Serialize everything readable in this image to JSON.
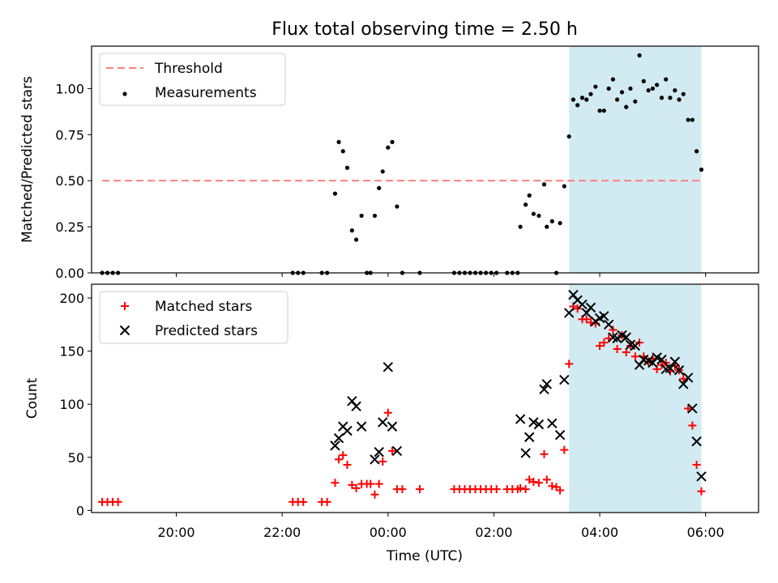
{
  "chart_data": [
    {
      "type": "scatter",
      "title": "Flux total observing time = 2.50 h",
      "xlabel": "",
      "ylabel": "Matched/Predicted stars",
      "x_unit": "hours relative to 00:00 UTC",
      "xlim": [
        -5.6,
        7.0
      ],
      "ylim": [
        0.0,
        1.23
      ],
      "yticks": [
        0.0,
        0.25,
        0.5,
        0.75,
        1.0
      ],
      "ytick_labels": [
        "0.00",
        "0.25",
        "0.50",
        "0.75",
        "1.00"
      ],
      "shaded_region": {
        "x": [
          3.42,
          5.92
        ],
        "color": "#add8e6"
      },
      "legend_location": "upper left",
      "grid": false,
      "series": [
        {
          "name": "Threshold",
          "style": "dashed-line",
          "color": "#ff8080",
          "points": [
            [
              -5.4,
              0.5
            ],
            [
              5.92,
              0.5
            ]
          ]
        },
        {
          "name": "Measurements",
          "style": "dot",
          "color": "#000000",
          "points": [
            [
              -5.4,
              0.0
            ],
            [
              -5.3,
              0.0
            ],
            [
              -5.2,
              0.0
            ],
            [
              -5.1,
              0.0
            ],
            [
              -1.8,
              0.0
            ],
            [
              -1.7,
              0.0
            ],
            [
              -1.6,
              0.0
            ],
            [
              -1.25,
              0.0
            ],
            [
              -1.15,
              0.0
            ],
            [
              -1.0,
              0.43
            ],
            [
              -0.93,
              0.71
            ],
            [
              -0.85,
              0.66
            ],
            [
              -0.77,
              0.57
            ],
            [
              -0.68,
              0.23
            ],
            [
              -0.6,
              0.18
            ],
            [
              -0.5,
              0.31
            ],
            [
              -0.4,
              0.0
            ],
            [
              -0.33,
              0.0
            ],
            [
              -0.25,
              0.31
            ],
            [
              -0.17,
              0.46
            ],
            [
              -0.1,
              0.55
            ],
            [
              0.0,
              0.68
            ],
            [
              0.08,
              0.71
            ],
            [
              0.17,
              0.36
            ],
            [
              0.27,
              0.0
            ],
            [
              0.6,
              0.0
            ],
            [
              1.25,
              0.0
            ],
            [
              1.35,
              0.0
            ],
            [
              1.45,
              0.0
            ],
            [
              1.55,
              0.0
            ],
            [
              1.65,
              0.0
            ],
            [
              1.75,
              0.0
            ],
            [
              1.85,
              0.0
            ],
            [
              1.95,
              0.0
            ],
            [
              2.05,
              0.0
            ],
            [
              2.25,
              0.0
            ],
            [
              2.35,
              0.0
            ],
            [
              2.45,
              0.0
            ],
            [
              2.5,
              0.25
            ],
            [
              2.6,
              0.37
            ],
            [
              2.67,
              0.42
            ],
            [
              2.75,
              0.32
            ],
            [
              2.85,
              0.31
            ],
            [
              2.95,
              0.48
            ],
            [
              3.0,
              0.25
            ],
            [
              3.1,
              0.28
            ],
            [
              3.18,
              0.0
            ],
            [
              3.25,
              0.27
            ],
            [
              3.33,
              0.47
            ],
            [
              3.42,
              0.74
            ],
            [
              3.5,
              0.94
            ],
            [
              3.58,
              0.91
            ],
            [
              3.67,
              0.95
            ],
            [
              3.75,
              0.94
            ],
            [
              3.83,
              0.97
            ],
            [
              3.92,
              1.01
            ],
            [
              4.0,
              0.88
            ],
            [
              4.08,
              0.88
            ],
            [
              4.17,
              1.0
            ],
            [
              4.25,
              1.05
            ],
            [
              4.33,
              0.94
            ],
            [
              4.42,
              0.98
            ],
            [
              4.5,
              0.9
            ],
            [
              4.58,
              1.0
            ],
            [
              4.67,
              0.93
            ],
            [
              4.75,
              1.18
            ],
            [
              4.83,
              1.04
            ],
            [
              4.92,
              0.99
            ],
            [
              5.0,
              1.0
            ],
            [
              5.08,
              1.02
            ],
            [
              5.17,
              0.95
            ],
            [
              5.25,
              1.05
            ],
            [
              5.33,
              0.95
            ],
            [
              5.42,
              0.99
            ],
            [
              5.5,
              0.94
            ],
            [
              5.58,
              0.97
            ],
            [
              5.67,
              0.83
            ],
            [
              5.75,
              0.83
            ],
            [
              5.83,
              0.66
            ],
            [
              5.92,
              0.56
            ]
          ]
        }
      ]
    },
    {
      "type": "scatter",
      "title": "",
      "xlabel": "Time (UTC)",
      "ylabel": "Count",
      "x_unit": "hours relative to 00:00 UTC",
      "xlim": [
        -5.6,
        7.0
      ],
      "ylim": [
        -2,
        213
      ],
      "yticks": [
        0,
        50,
        100,
        150,
        200
      ],
      "ytick_labels": [
        "0",
        "50",
        "100",
        "150",
        "200"
      ],
      "xticks": [
        -4,
        -2,
        0,
        2,
        4,
        6
      ],
      "xtick_labels": [
        "20:00",
        "22:00",
        "00:00",
        "02:00",
        "04:00",
        "06:00"
      ],
      "shaded_region": {
        "x": [
          3.42,
          5.92
        ],
        "color": "#add8e6"
      },
      "legend_location": "upper left",
      "grid": false,
      "series": [
        {
          "name": "Matched stars",
          "marker": "+",
          "color": "#ff0000",
          "points": [
            [
              -5.4,
              8
            ],
            [
              -5.3,
              8
            ],
            [
              -5.2,
              8
            ],
            [
              -5.1,
              8
            ],
            [
              -1.8,
              8
            ],
            [
              -1.7,
              8
            ],
            [
              -1.6,
              8
            ],
            [
              -1.25,
              8
            ],
            [
              -1.15,
              8
            ],
            [
              -1.0,
              26
            ],
            [
              -0.93,
              48
            ],
            [
              -0.85,
              52
            ],
            [
              -0.77,
              43
            ],
            [
              -0.68,
              24
            ],
            [
              -0.6,
              21
            ],
            [
              -0.5,
              25
            ],
            [
              -0.4,
              25
            ],
            [
              -0.33,
              25
            ],
            [
              -0.25,
              15
            ],
            [
              -0.17,
              25
            ],
            [
              -0.1,
              46
            ],
            [
              0.0,
              92
            ],
            [
              0.08,
              56
            ],
            [
              0.17,
              20
            ],
            [
              0.27,
              20
            ],
            [
              0.6,
              20
            ],
            [
              1.25,
              20
            ],
            [
              1.35,
              20
            ],
            [
              1.45,
              20
            ],
            [
              1.55,
              20
            ],
            [
              1.65,
              20
            ],
            [
              1.75,
              20
            ],
            [
              1.85,
              20
            ],
            [
              1.95,
              20
            ],
            [
              2.05,
              20
            ],
            [
              2.25,
              20
            ],
            [
              2.35,
              20
            ],
            [
              2.45,
              20
            ],
            [
              2.5,
              21
            ],
            [
              2.6,
              20
            ],
            [
              2.67,
              29
            ],
            [
              2.75,
              27
            ],
            [
              2.85,
              26
            ],
            [
              2.95,
              53
            ],
            [
              3.0,
              29
            ],
            [
              3.1,
              23
            ],
            [
              3.18,
              22
            ],
            [
              3.25,
              19
            ],
            [
              3.33,
              57
            ],
            [
              3.42,
              138
            ],
            [
              3.5,
              192
            ],
            [
              3.58,
              190
            ],
            [
              3.67,
              180
            ],
            [
              3.75,
              180
            ],
            [
              3.83,
              177
            ],
            [
              3.92,
              176
            ],
            [
              4.0,
              155
            ],
            [
              4.08,
              158
            ],
            [
              4.17,
              162
            ],
            [
              4.25,
              170
            ],
            [
              4.33,
              152
            ],
            [
              4.42,
              165
            ],
            [
              4.5,
              149
            ],
            [
              4.58,
              155
            ],
            [
              4.67,
              145
            ],
            [
              4.75,
              158
            ],
            [
              4.83,
              145
            ],
            [
              4.92,
              140
            ],
            [
              5.0,
              143
            ],
            [
              5.08,
              133
            ],
            [
              5.17,
              137
            ],
            [
              5.25,
              139
            ],
            [
              5.33,
              131
            ],
            [
              5.42,
              136
            ],
            [
              5.5,
              132
            ],
            [
              5.58,
              124
            ],
            [
              5.67,
              96
            ],
            [
              5.75,
              80
            ],
            [
              5.83,
              43
            ],
            [
              5.92,
              18
            ]
          ]
        },
        {
          "name": "Predicted stars",
          "marker": "x",
          "color": "#000000",
          "points": [
            [
              -1.0,
              61
            ],
            [
              -0.93,
              68
            ],
            [
              -0.85,
              79
            ],
            [
              -0.77,
              75
            ],
            [
              -0.68,
              103
            ],
            [
              -0.6,
              98
            ],
            [
              -0.5,
              79
            ],
            [
              -0.25,
              48
            ],
            [
              -0.17,
              55
            ],
            [
              -0.1,
              83
            ],
            [
              0.0,
              135
            ],
            [
              0.08,
              79
            ],
            [
              0.17,
              56
            ],
            [
              2.5,
              86
            ],
            [
              2.6,
              54
            ],
            [
              2.67,
              69
            ],
            [
              2.75,
              83
            ],
            [
              2.85,
              81
            ],
            [
              2.95,
              114
            ],
            [
              3.0,
              119
            ],
            [
              3.1,
              82
            ],
            [
              3.25,
              71
            ],
            [
              3.33,
              123
            ],
            [
              3.42,
              186
            ],
            [
              3.5,
              203
            ],
            [
              3.58,
              198
            ],
            [
              3.67,
              194
            ],
            [
              3.75,
              186
            ],
            [
              3.83,
              191
            ],
            [
              3.92,
              178
            ],
            [
              4.0,
              181
            ],
            [
              4.08,
              183
            ],
            [
              4.17,
              175
            ],
            [
              4.25,
              163
            ],
            [
              4.33,
              162
            ],
            [
              4.42,
              165
            ],
            [
              4.5,
              163
            ],
            [
              4.58,
              156
            ],
            [
              4.67,
              155
            ],
            [
              4.75,
              137
            ],
            [
              4.83,
              142
            ],
            [
              4.92,
              141
            ],
            [
              5.0,
              139
            ],
            [
              5.08,
              144
            ],
            [
              5.17,
              142
            ],
            [
              5.25,
              133
            ],
            [
              5.33,
              134
            ],
            [
              5.42,
              140
            ],
            [
              5.5,
              132
            ],
            [
              5.58,
              119
            ],
            [
              5.67,
              125
            ],
            [
              5.75,
              96
            ],
            [
              5.83,
              65
            ],
            [
              5.92,
              32
            ]
          ]
        }
      ]
    }
  ]
}
